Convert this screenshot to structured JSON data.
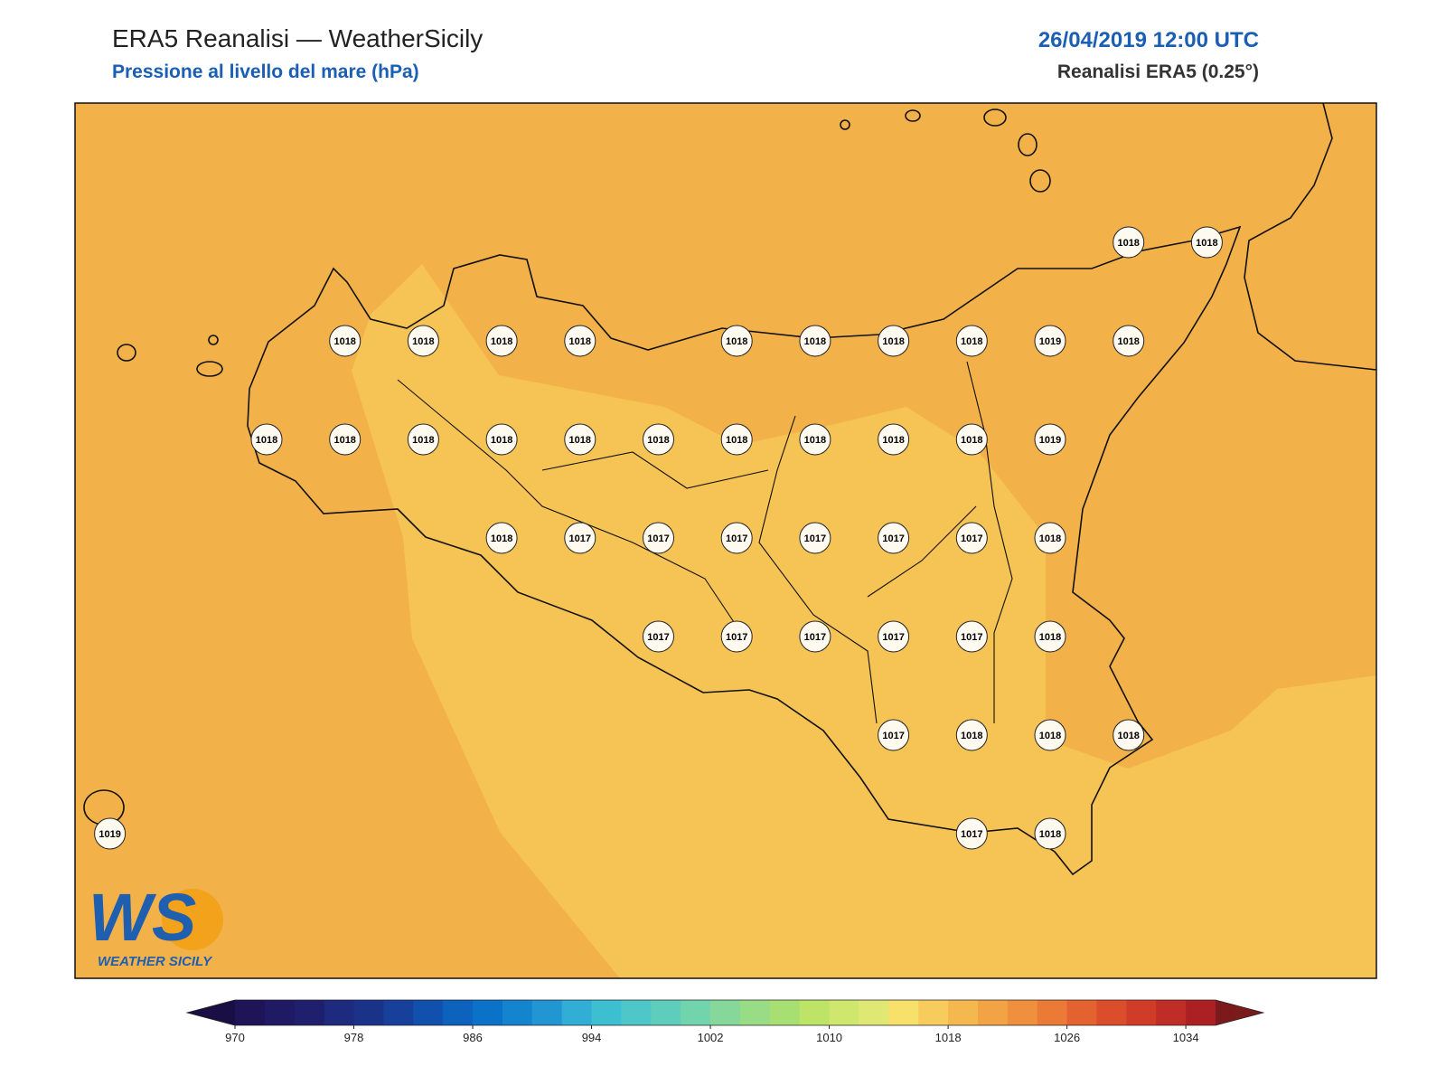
{
  "header": {
    "title": "ERA5 Reanalisi — WeatherSicily",
    "subtitle": "Pressione al livello del mare (hPa)",
    "datetime": "26/04/2019 12:00 UTC",
    "model": "Reanalisi ERA5 (0.25°)"
  },
  "stations": [
    1018,
    1018,
    1018,
    1018,
    1018,
    1018,
    1018,
    1018,
    1018,
    1018,
    1019,
    1018,
    1018,
    1018,
    1018,
    1018,
    1018,
    1018,
    1018,
    1018,
    1018,
    1018,
    1019,
    1018,
    1017,
    1017,
    1017,
    1017,
    1017,
    1017,
    1018,
    1017,
    1017,
    1017,
    1017,
    1017,
    1018,
    1017,
    1018,
    1018,
    1018,
    1019,
    1017,
    1018
  ],
  "colorbar": {
    "lim": [
      970,
      1036
    ],
    "ticks": [
      970,
      978,
      986,
      994,
      1002,
      1010,
      1018,
      1026,
      1034
    ],
    "colors": [
      "#1e1457",
      "#1f1a63",
      "#1f1f6e",
      "#1e2a7e",
      "#1b3289",
      "#17409b",
      "#1150ad",
      "#0c62bd",
      "#0a72c8",
      "#1484cf",
      "#2296d2",
      "#30aed6",
      "#3cbfd1",
      "#4ec7c8",
      "#5fcdbb",
      "#72d4ac",
      "#86d89a",
      "#98dc86",
      "#a8df72",
      "#bde466",
      "#d0e76d",
      "#e0e874",
      "#f7e16a",
      "#f8cc5c",
      "#f5b84f",
      "#f2a444",
      "#ee903d",
      "#ea7a36",
      "#e4622f",
      "#dc4e2b",
      "#d03c28",
      "#c02c26",
      "#ac2024"
    ],
    "extend_colors": [
      "#1a0f45",
      "#7a1a1a"
    ]
  },
  "logo": {
    "mark": "WS",
    "text": "WEATHER SICILY"
  }
}
